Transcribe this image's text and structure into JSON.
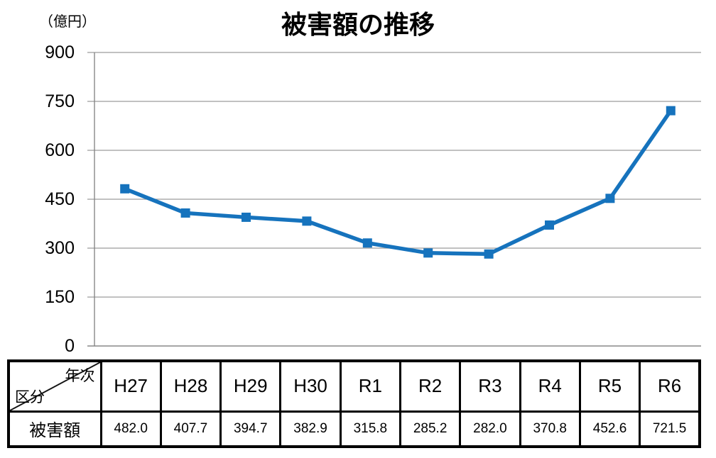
{
  "chart_data": {
    "type": "line",
    "title": "被害額の推移",
    "unit_label": "（億円）",
    "categories": [
      "H27",
      "H28",
      "H29",
      "H30",
      "R1",
      "R2",
      "R3",
      "R4",
      "R5",
      "R6"
    ],
    "series": [
      {
        "name": "被害額",
        "values": [
          482.0,
          407.7,
          394.7,
          382.9,
          315.8,
          285.2,
          282.0,
          370.8,
          452.6,
          721.5
        ]
      }
    ],
    "ylim": [
      0,
      900
    ],
    "yticks": [
      0,
      150,
      300,
      450,
      600,
      750,
      900
    ],
    "xlabel": "",
    "ylabel": "（億円）",
    "grid": true,
    "legend": "none",
    "marker": "square",
    "line_color": "#1673BD",
    "grid_color": "#9C9C9C",
    "axis_color": "#808080",
    "tick_label_color": "#000000"
  },
  "table": {
    "corner_top_right": "年次",
    "corner_bottom_left": "区分",
    "row_label": "被害額",
    "columns": [
      "H27",
      "H28",
      "H29",
      "H30",
      "R1",
      "R2",
      "R3",
      "R4",
      "R5",
      "R6"
    ],
    "values": [
      "482.0",
      "407.7",
      "394.7",
      "382.9",
      "315.8",
      "285.2",
      "282.0",
      "370.8",
      "452.6",
      "721.5"
    ]
  }
}
